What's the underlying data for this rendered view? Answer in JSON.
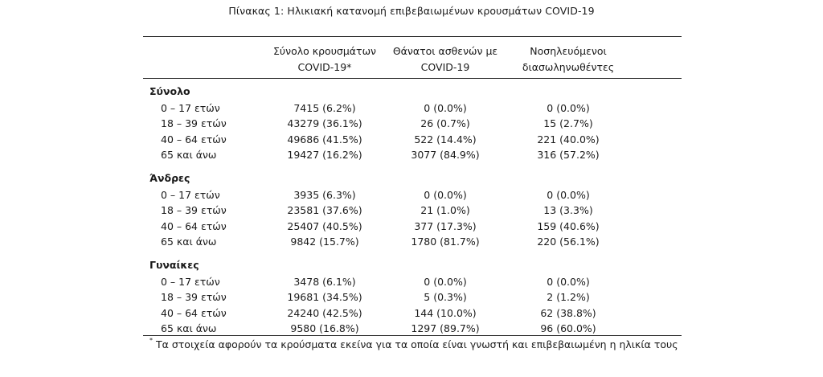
{
  "caption": "Πίνακας 1: Ηλικιακή κατανομή επιβεβαιωμένων κρουσμάτων COVID-19",
  "headers": [
    {
      "line1": "Σύνολο κρουσμάτων",
      "line2": "COVID-19*"
    },
    {
      "line1": "Θάνατοι ασθενών με",
      "line2": "COVID-19"
    },
    {
      "line1": "Νοσηλευόμενοι",
      "line2": "διασωληνωθέντες"
    }
  ],
  "groups": [
    {
      "label": "Σύνολο",
      "rows": [
        {
          "age": "0 – 17 ετών",
          "cases": "7415 (6.2%)",
          "deaths": "0 (0.0%)",
          "intubated": "0 (0.0%)"
        },
        {
          "age": "18 – 39 ετών",
          "cases": "43279 (36.1%)",
          "deaths": "26 (0.7%)",
          "intubated": "15 (2.7%)"
        },
        {
          "age": "40 – 64 ετών",
          "cases": "49686 (41.5%)",
          "deaths": "522 (14.4%)",
          "intubated": "221 (40.0%)"
        },
        {
          "age": "65 και άνω",
          "cases": "19427 (16.2%)",
          "deaths": "3077 (84.9%)",
          "intubated": "316 (57.2%)"
        }
      ]
    },
    {
      "label": "Άνδρες",
      "rows": [
        {
          "age": "0 – 17 ετών",
          "cases": "3935 (6.3%)",
          "deaths": "0 (0.0%)",
          "intubated": "0 (0.0%)"
        },
        {
          "age": "18 – 39 ετών",
          "cases": "23581 (37.6%)",
          "deaths": "21 (1.0%)",
          "intubated": "13 (3.3%)"
        },
        {
          "age": "40 – 64 ετών",
          "cases": "25407 (40.5%)",
          "deaths": "377 (17.3%)",
          "intubated": "159 (40.6%)"
        },
        {
          "age": "65 και άνω",
          "cases": "9842 (15.7%)",
          "deaths": "1780 (81.7%)",
          "intubated": "220 (56.1%)"
        }
      ]
    },
    {
      "label": "Γυναίκες",
      "rows": [
        {
          "age": "0 – 17 ετών",
          "cases": "3478 (6.1%)",
          "deaths": "0 (0.0%)",
          "intubated": "0 (0.0%)"
        },
        {
          "age": "18 – 39 ετών",
          "cases": "19681 (34.5%)",
          "deaths": "5 (0.3%)",
          "intubated": "2 (1.2%)"
        },
        {
          "age": "40 – 64 ετών",
          "cases": "24240 (42.5%)",
          "deaths": "144 (10.0%)",
          "intubated": "62 (38.8%)"
        },
        {
          "age": "65 και άνω",
          "cases": "9580 (16.8%)",
          "deaths": "1297 (89.7%)",
          "intubated": "96 (60.0%)"
        }
      ]
    }
  ],
  "footnote": {
    "mark": "*",
    "text": "Τα στοιχεία αφορούν τα κρούσματα εκείνα για τα οποία είναι γνωστή και επιβεβαιωμένη η ηλικία τους"
  }
}
